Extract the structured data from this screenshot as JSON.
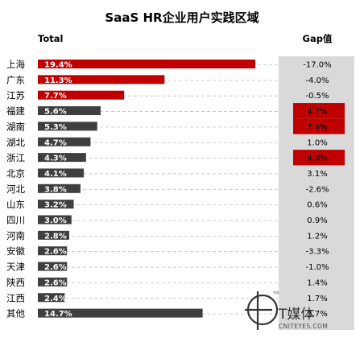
{
  "chart_data": {
    "type": "bar",
    "title": "SaaS HR企业用户实践区域",
    "columns": {
      "left": "Total",
      "right": "Gap值"
    },
    "categories": [
      "上海",
      "广东",
      "江苏",
      "福建",
      "湖南",
      "湖北",
      "浙江",
      "北京",
      "河北",
      "山东",
      "四川",
      "河南",
      "安徽",
      "天津",
      "陕西",
      "江西",
      "其他"
    ],
    "series": [
      {
        "name": "Total",
        "values": [
          19.4,
          11.3,
          7.7,
          5.6,
          5.3,
          4.7,
          4.3,
          4.1,
          3.8,
          3.2,
          3.0,
          2.8,
          2.6,
          2.6,
          2.6,
          2.4,
          14.7
        ],
        "labels": [
          "19.4%",
          "11.3%",
          "7.7%",
          "5.6%",
          "5.3%",
          "4.7%",
          "4.3%",
          "4.1%",
          "3.8%",
          "3.2%",
          "3.0%",
          "2.8%",
          "2.6%",
          "2.6%",
          "2.6%",
          "2.4%",
          "14.7%"
        ]
      },
      {
        "name": "Gap值",
        "values": [
          -17.0,
          -4.0,
          -0.5,
          4.7,
          7.4,
          1.0,
          4.0,
          3.1,
          -2.6,
          0.6,
          0.9,
          1.2,
          -3.3,
          -1.0,
          1.4,
          1.7,
          3.7
        ],
        "labels": [
          "-17.0%",
          "-4.0%",
          "-0.5%",
          "4.7%",
          "7.4%",
          "1.0%",
          "4.0%",
          "3.1%",
          "-2.6%",
          "0.6%",
          "0.9%",
          "1.2%",
          "-3.3%",
          "-1.0%",
          "1.4%",
          "1.7%",
          "3.7%"
        ],
        "highlighted_rows": [
          3,
          4,
          6
        ]
      }
    ],
    "top_highlight_count": 3,
    "colors": {
      "highlight": "#c00000",
      "bar": "#3f3f3f",
      "gap_panel": "#d9d9d9",
      "gridline": "#bfbfbf"
    }
  },
  "watermark": {
    "brand": "T媒体",
    "site": "CNITEYES.COM",
    "mark": "TM"
  }
}
